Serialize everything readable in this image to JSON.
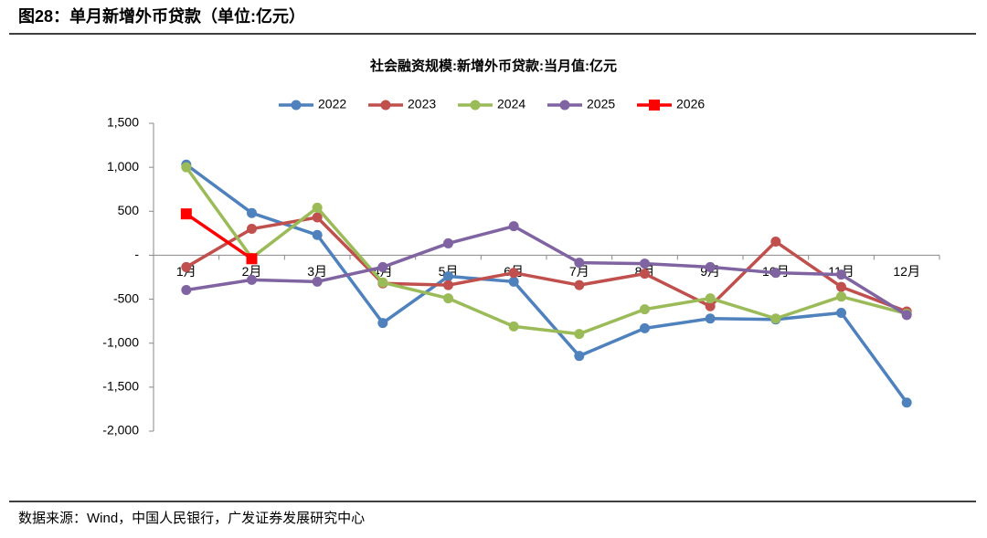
{
  "header": {
    "title": "图28：单月新增外币贷款（单位:亿元）",
    "source": "数据来源：Wind，中国人民银行，广发证券发展研究中心"
  },
  "chart_data": {
    "type": "line",
    "title": "社会融资规模:新增外币贷款:当月值:亿元",
    "categories": [
      "1月",
      "2月",
      "3月",
      "4月",
      "5月",
      "6月",
      "7月",
      "8月",
      "9月",
      "10月",
      "11月",
      "12月"
    ],
    "series": [
      {
        "name": "2022",
        "color": "#4f81bd",
        "marker": "circle",
        "values": [
          1030,
          480,
          230,
          -770,
          -240,
          -300,
          -1145,
          -830,
          -720,
          -730,
          -655,
          -1675
        ]
      },
      {
        "name": "2023",
        "color": "#c0504d",
        "marker": "circle",
        "values": [
          -135,
          300,
          430,
          -320,
          -340,
          -200,
          -340,
          -210,
          -580,
          155,
          -360,
          -640
        ]
      },
      {
        "name": "2024",
        "color": "#9bbb59",
        "marker": "circle",
        "values": [
          1000,
          -30,
          540,
          -310,
          -490,
          -810,
          -895,
          -615,
          -490,
          -720,
          -470,
          -665
        ]
      },
      {
        "name": "2025",
        "color": "#8064a2",
        "marker": "circle",
        "values": [
          -395,
          -280,
          -300,
          -135,
          135,
          330,
          -85,
          -95,
          -135,
          -200,
          -220,
          -680
        ]
      },
      {
        "name": "2026",
        "color": "#ff0000",
        "marker": "square",
        "values": [
          470,
          -40,
          null,
          null,
          null,
          null,
          null,
          null,
          null,
          null,
          null,
          null
        ]
      }
    ],
    "ylim": [
      -2000,
      1500
    ],
    "yticks": [
      {
        "value": 1500,
        "label": "1,500"
      },
      {
        "value": 1000,
        "label": "1,000"
      },
      500,
      {
        "value": 0,
        "label": "-"
      },
      -500,
      {
        "value": -1000,
        "label": "-1,000"
      },
      {
        "value": -1500,
        "label": "-1,500"
      },
      {
        "value": -2000,
        "label": "-2,000"
      }
    ],
    "grid": false,
    "legend": "top"
  }
}
